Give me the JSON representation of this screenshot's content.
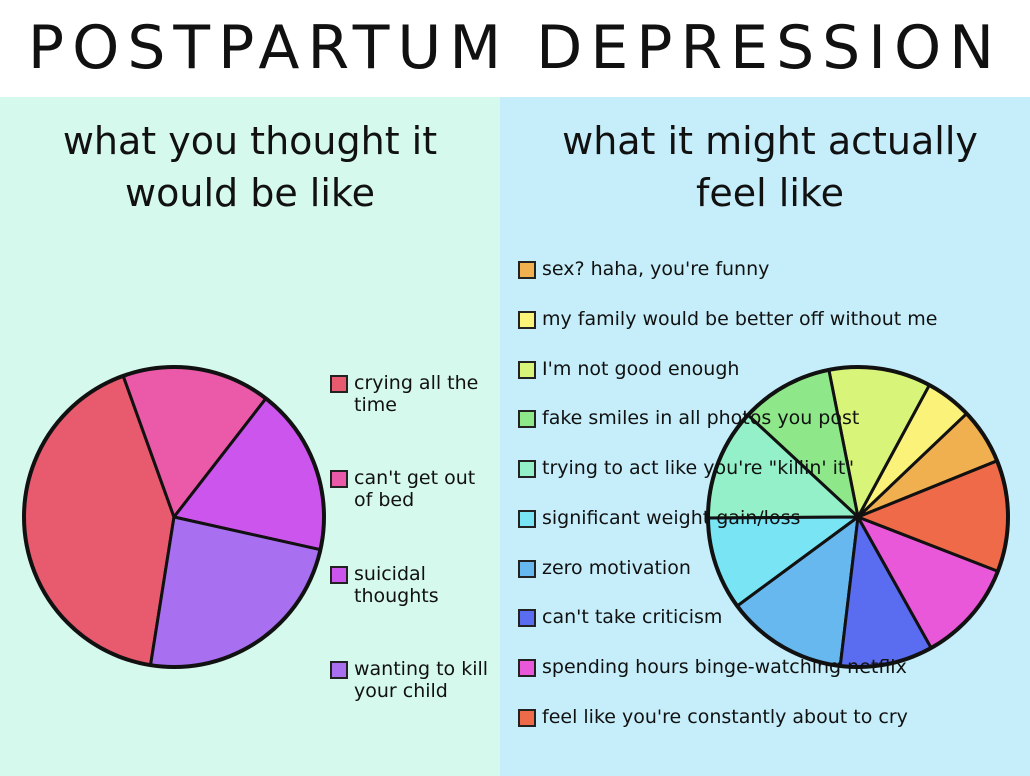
{
  "title": "POSTPARTUM DEPRESSION",
  "chart_data": [
    {
      "type": "pie",
      "subtitle": "what you thought it would be like",
      "categories": [
        "crying all the time",
        "can't get out of bed",
        "suicidal thoughts",
        "wanting to kill your child"
      ],
      "values": [
        42,
        16,
        18,
        24
      ],
      "colors": [
        "#e85a6e",
        "#ea5aa8",
        "#cc55ee",
        "#a870f0"
      ]
    },
    {
      "type": "pie",
      "subtitle": "what it might actually feel like",
      "categories": [
        "sex? haha, you're funny",
        "my family would be better off without me",
        "I'm not good enough",
        "fake smiles in all photos you post",
        "trying to act like you're \"killin' it\"",
        "significant weight gain/loss",
        "zero motivation",
        "can't take criticism",
        "spending hours binge-watching netflix",
        "feel like you're constantly about to cry"
      ],
      "values": [
        6,
        5,
        11,
        10,
        12,
        10,
        13,
        10,
        11,
        12
      ],
      "colors": [
        "#f0b050",
        "#fbf27a",
        "#d8f57a",
        "#8ee88a",
        "#94f0c8",
        "#78e4f4",
        "#68b8f0",
        "#5a6cf0",
        "#e858d8",
        "#ee6a48"
      ]
    }
  ]
}
